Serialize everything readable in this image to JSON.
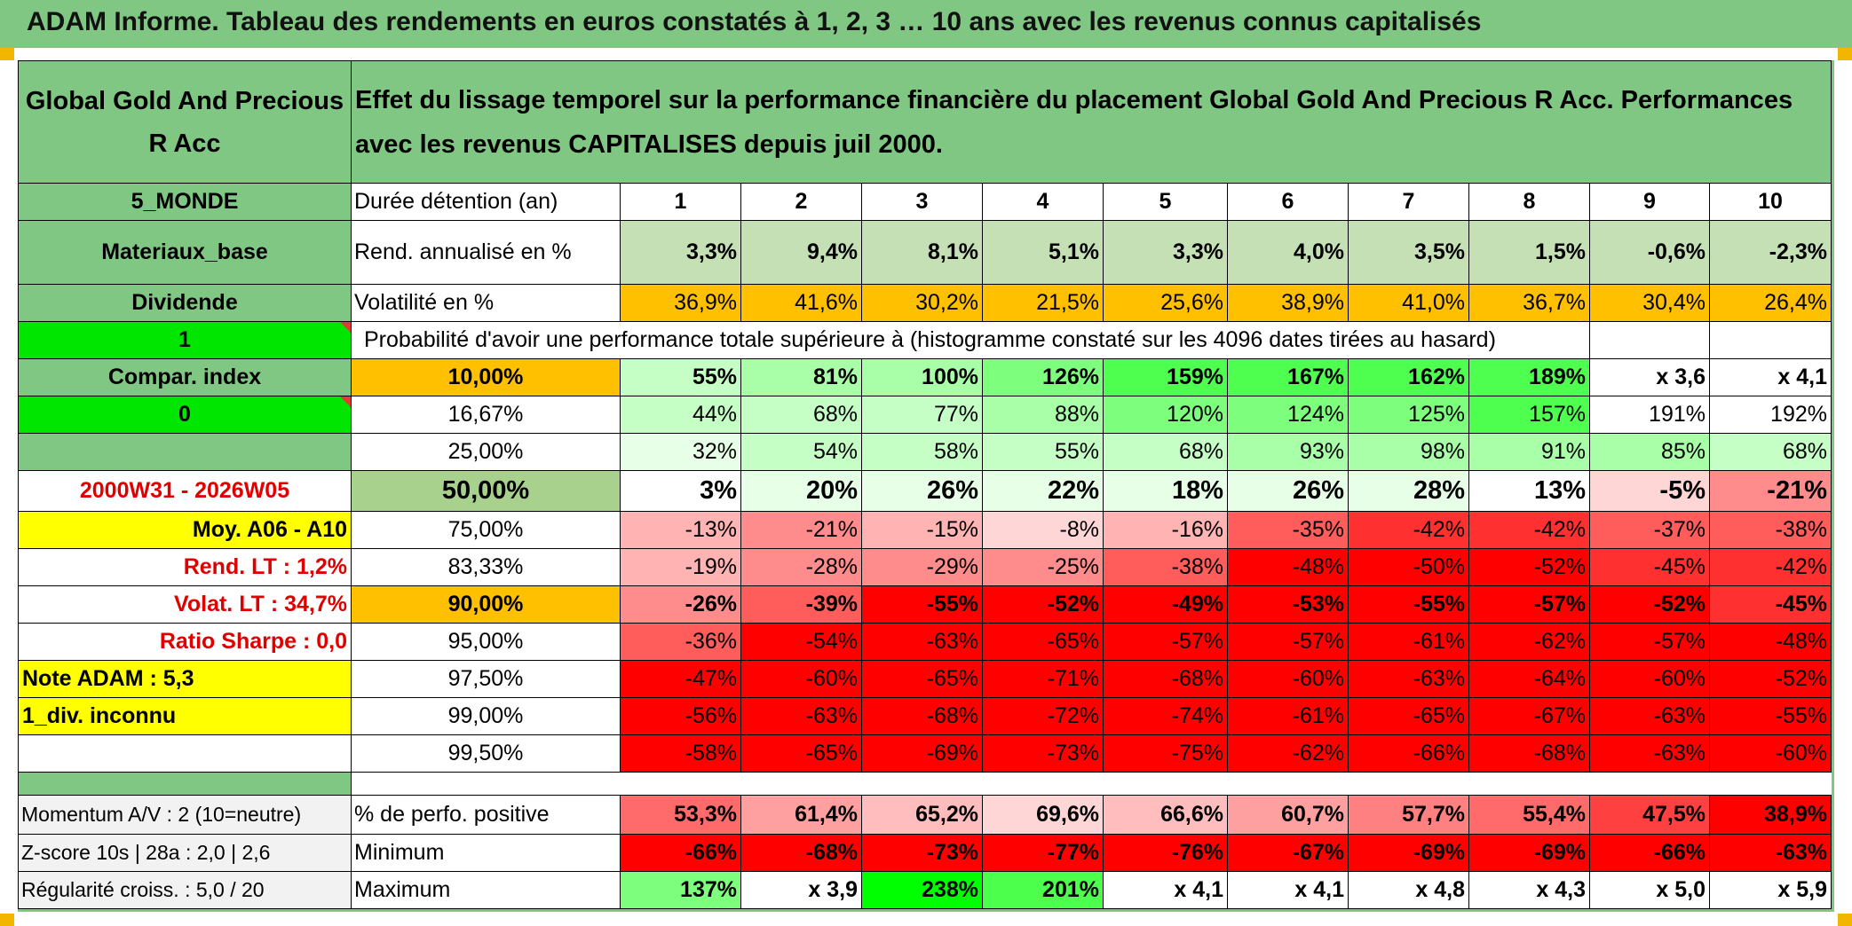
{
  "header": {
    "title": "ADAM Informe. Tableau des rendements en euros constatés à 1, 2, 3 … 10 ans avec les revenus connus capitalisés"
  },
  "fund": {
    "name": "Global Gold And Precious R Acc",
    "description": "Effet du lissage temporel sur la performance financière du placement Global Gold And Precious R Acc. Performances avec les revenus CAPITALISES depuis juil 2000."
  },
  "left_column": {
    "zone": "5_MONDE",
    "sector": "Materiaux_base",
    "distribution": "Dividende",
    "flag_1": "1",
    "compar_index": "Compar. index",
    "flag_0": "0",
    "period": "2000W31 - 2026W05",
    "moy": "Moy. A06 - A10",
    "rend_lt": "Rend. LT :   1,2%",
    "volat_lt": "Volat. LT :   34,7%",
    "sharpe": "Ratio Sharpe :    0,0",
    "note": "Note ADAM : 5,3",
    "div": "1_div. inconnu"
  },
  "labels": {
    "duration": "Durée détention (an)",
    "rend": "Rend. annualisé en %",
    "vol": "Volatilité en %",
    "prob": "Probabilité d'avoir une performance totale supérieure à (histogramme constaté sur les 4096 dates tirées au hasard)",
    "pct_pos": "% de perfo. positive",
    "min": "Minimum",
    "max": "Maximum",
    "momentum": "Momentum A/V : 2 (10=neutre)",
    "zscore": "Z-score 10s | 28a : 2,0 | 2,6",
    "regularite": "Régularité croiss. : 5,0 / 20"
  },
  "years": [
    "1",
    "2",
    "3",
    "4",
    "5",
    "6",
    "7",
    "8",
    "9",
    "10"
  ],
  "rend": [
    "3,3%",
    "9,4%",
    "8,1%",
    "5,1%",
    "3,3%",
    "4,0%",
    "3,5%",
    "1,5%",
    "-0,6%",
    "-2,3%"
  ],
  "vol": [
    "36,9%",
    "41,6%",
    "30,2%",
    "21,5%",
    "25,6%",
    "38,9%",
    "41,0%",
    "36,7%",
    "30,4%",
    "26,4%"
  ],
  "prob_rows": [
    {
      "threshold": "10,00%",
      "values": [
        "55%",
        "81%",
        "100%",
        "126%",
        "159%",
        "167%",
        "162%",
        "189%",
        "x 3,6",
        "x 4,1"
      ]
    },
    {
      "threshold": "16,67%",
      "values": [
        "44%",
        "68%",
        "77%",
        "88%",
        "120%",
        "124%",
        "125%",
        "157%",
        "191%",
        "192%"
      ]
    },
    {
      "threshold": "25,00%",
      "values": [
        "32%",
        "54%",
        "58%",
        "55%",
        "68%",
        "93%",
        "98%",
        "91%",
        "85%",
        "68%"
      ]
    },
    {
      "threshold": "50,00%",
      "values": [
        "3%",
        "20%",
        "26%",
        "22%",
        "18%",
        "26%",
        "28%",
        "13%",
        "-5%",
        "-21%"
      ]
    },
    {
      "threshold": "75,00%",
      "values": [
        "-13%",
        "-21%",
        "-15%",
        "-8%",
        "-16%",
        "-35%",
        "-42%",
        "-42%",
        "-37%",
        "-38%"
      ]
    },
    {
      "threshold": "83,33%",
      "values": [
        "-19%",
        "-28%",
        "-29%",
        "-25%",
        "-38%",
        "-48%",
        "-50%",
        "-52%",
        "-45%",
        "-42%"
      ]
    },
    {
      "threshold": "90,00%",
      "values": [
        "-26%",
        "-39%",
        "-55%",
        "-52%",
        "-49%",
        "-53%",
        "-55%",
        "-57%",
        "-52%",
        "-45%"
      ]
    },
    {
      "threshold": "95,00%",
      "values": [
        "-36%",
        "-54%",
        "-63%",
        "-65%",
        "-57%",
        "-57%",
        "-61%",
        "-62%",
        "-57%",
        "-48%"
      ]
    },
    {
      "threshold": "97,50%",
      "values": [
        "-47%",
        "-60%",
        "-65%",
        "-71%",
        "-68%",
        "-60%",
        "-63%",
        "-64%",
        "-60%",
        "-52%"
      ]
    },
    {
      "threshold": "99,00%",
      "values": [
        "-56%",
        "-63%",
        "-68%",
        "-72%",
        "-74%",
        "-61%",
        "-65%",
        "-67%",
        "-63%",
        "-55%"
      ]
    },
    {
      "threshold": "99,50%",
      "values": [
        "-58%",
        "-65%",
        "-69%",
        "-73%",
        "-75%",
        "-62%",
        "-66%",
        "-68%",
        "-63%",
        "-60%"
      ]
    }
  ],
  "pct_pos": [
    "53,3%",
    "61,4%",
    "65,2%",
    "69,6%",
    "66,6%",
    "60,7%",
    "57,7%",
    "55,4%",
    "47,5%",
    "38,9%"
  ],
  "minimum": [
    "-66%",
    "-68%",
    "-73%",
    "-77%",
    "-76%",
    "-67%",
    "-69%",
    "-69%",
    "-66%",
    "-63%"
  ],
  "maximum": [
    "137%",
    "x 3,9",
    "238%",
    "201%",
    "x 4,1",
    "x 4,1",
    "x 4,8",
    "x 4,3",
    "x 5,0",
    "x 5,9"
  ],
  "colors": {
    "header_green": "#81c784",
    "bright_green": "#00e600",
    "yellow": "#ffff00",
    "orange": "#ffc000",
    "label_red": "#e00000",
    "neg_red": "#ff0000"
  }
}
